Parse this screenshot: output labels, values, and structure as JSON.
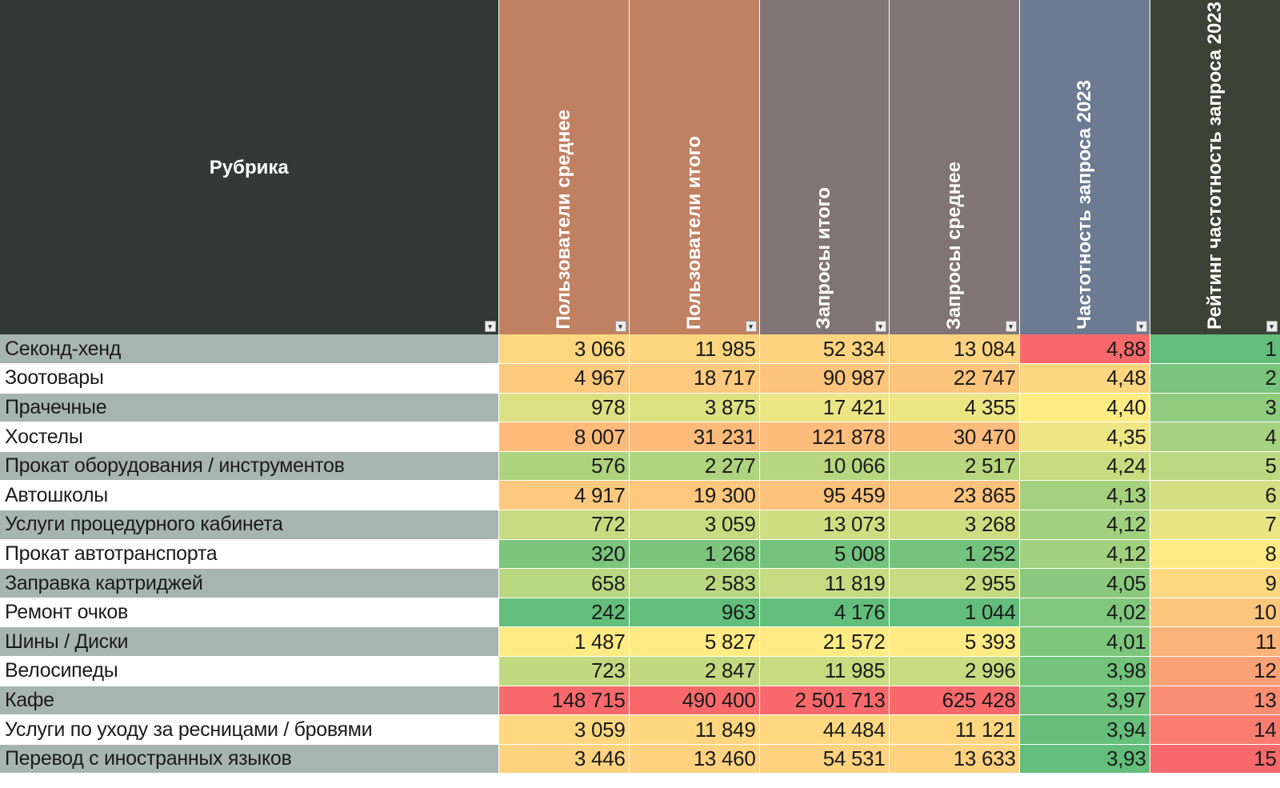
{
  "colors": {
    "header_rubric": "#323a38",
    "header_users": "#c08163",
    "header_requests": "#807477",
    "header_freq": "#6c7b91",
    "header_rank": "#3d4236",
    "green": "#63be7b",
    "yellow": "#ffeb84",
    "red": "#f8696b"
  },
  "dropdown_icon": "▾",
  "headers": [
    {
      "label": "Рубрика"
    },
    {
      "label": "Пользователи среднее"
    },
    {
      "label": "Пользователи итого"
    },
    {
      "label": "Запросы итого"
    },
    {
      "label": "Запросы среднее"
    },
    {
      "label": "Частотность запроса 2023"
    },
    {
      "label": "Рейтинг частотность запроса 2023"
    }
  ],
  "rows": [
    {
      "name": "Секонд-хенд",
      "cells": [
        "3 066",
        "11 985",
        "52 334",
        "13 084",
        "4,88",
        "1"
      ]
    },
    {
      "name": "Зоотовары",
      "cells": [
        "4 967",
        "18 717",
        "90 987",
        "22 747",
        "4,48",
        "2"
      ]
    },
    {
      "name": "Прачечные",
      "cells": [
        "978",
        "3 875",
        "17 421",
        "4 355",
        "4,40",
        "3"
      ]
    },
    {
      "name": "Хостелы",
      "cells": [
        "8 007",
        "31 231",
        "121 878",
        "30 470",
        "4,35",
        "4"
      ]
    },
    {
      "name": "Прокат оборудования / инструментов",
      "cells": [
        "576",
        "2 277",
        "10 066",
        "2 517",
        "4,24",
        "5"
      ]
    },
    {
      "name": "Автошколы",
      "cells": [
        "4 917",
        "19 300",
        "95 459",
        "23 865",
        "4,13",
        "6"
      ]
    },
    {
      "name": "Услуги процедурного кабинета",
      "cells": [
        "772",
        "3 059",
        "13 073",
        "3 268",
        "4,12",
        "7"
      ]
    },
    {
      "name": "Прокат автотранспорта",
      "cells": [
        "320",
        "1 268",
        "5 008",
        "1 252",
        "4,12",
        "8"
      ]
    },
    {
      "name": "Заправка картриджей",
      "cells": [
        "658",
        "2 583",
        "11 819",
        "2 955",
        "4,05",
        "9"
      ]
    },
    {
      "name": "Ремонт очков",
      "cells": [
        "242",
        "963",
        "4 176",
        "1 044",
        "4,02",
        "10"
      ]
    },
    {
      "name": "Шины / Диски",
      "cells": [
        "1 487",
        "5 827",
        "21 572",
        "5 393",
        "4,01",
        "11"
      ]
    },
    {
      "name": "Велосипеды",
      "cells": [
        "723",
        "2 847",
        "11 985",
        "2 996",
        "3,98",
        "12"
      ]
    },
    {
      "name": "Кафе",
      "cells": [
        "148 715",
        "490 400",
        "2 501 713",
        "625 428",
        "3,97",
        "13"
      ]
    },
    {
      "name": "Услуги по уходу за ресницами / бровями",
      "cells": [
        "3 059",
        "11 849",
        "44 484",
        "11 121",
        "3,94",
        "14"
      ]
    },
    {
      "name": "Перевод с иностранных языков",
      "cells": [
        "3 446",
        "13 460",
        "54 531",
        "13 633",
        "3,93",
        "15"
      ]
    }
  ]
}
